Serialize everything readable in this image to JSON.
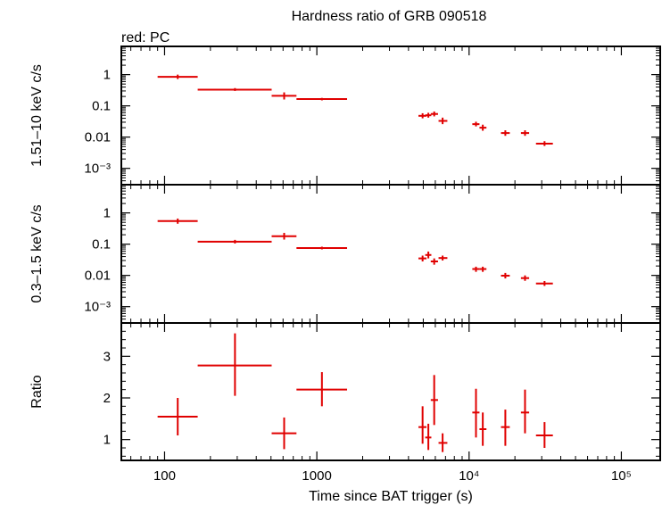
{
  "title": "Hardness ratio of GRB 090518",
  "legend_text": "red: PC",
  "colors": {
    "series": "#e00000",
    "frame": "#000000",
    "background": "#ffffff"
  },
  "chart_data": [
    {
      "type": "scatter",
      "panel": "top",
      "ylabel": "1.51–10 keV c/s",
      "yscale": "log",
      "ylim": [
        0.0003,
        8
      ],
      "yticks": [
        {
          "v": 1,
          "label": "1"
        },
        {
          "v": 0.1,
          "label": "0.1"
        },
        {
          "v": 0.01,
          "label": "0.01"
        },
        {
          "v": 0.001,
          "label": "10⁻³"
        }
      ],
      "series": [
        {
          "name": "PC",
          "points": [
            {
              "x": 122,
              "xlo": 90,
              "xhi": 165,
              "y": 0.85,
              "ylo": 0.72,
              "yhi": 1.0
            },
            {
              "x": 290,
              "xlo": 165,
              "xhi": 505,
              "y": 0.33,
              "ylo": 0.3,
              "yhi": 0.37
            },
            {
              "x": 610,
              "xlo": 505,
              "xhi": 735,
              "y": 0.21,
              "ylo": 0.16,
              "yhi": 0.27
            },
            {
              "x": 1080,
              "xlo": 735,
              "xhi": 1580,
              "y": 0.165,
              "ylo": 0.15,
              "yhi": 0.18
            },
            {
              "x": 4950,
              "xlo": 4650,
              "xhi": 5250,
              "y": 0.048,
              "ylo": 0.04,
              "yhi": 0.058
            },
            {
              "x": 5400,
              "xlo": 5150,
              "xhi": 5650,
              "y": 0.05,
              "ylo": 0.042,
              "yhi": 0.06
            },
            {
              "x": 5900,
              "xlo": 5600,
              "xhi": 6250,
              "y": 0.055,
              "ylo": 0.046,
              "yhi": 0.066
            },
            {
              "x": 6700,
              "xlo": 6300,
              "xhi": 7200,
              "y": 0.033,
              "ylo": 0.026,
              "yhi": 0.042
            },
            {
              "x": 11100,
              "xlo": 10500,
              "xhi": 11700,
              "y": 0.026,
              "ylo": 0.022,
              "yhi": 0.031
            },
            {
              "x": 12300,
              "xlo": 11700,
              "xhi": 13000,
              "y": 0.02,
              "ylo": 0.016,
              "yhi": 0.025
            },
            {
              "x": 17300,
              "xlo": 16200,
              "xhi": 18500,
              "y": 0.0135,
              "ylo": 0.011,
              "yhi": 0.0165
            },
            {
              "x": 23300,
              "xlo": 21900,
              "xhi": 24800,
              "y": 0.0135,
              "ylo": 0.011,
              "yhi": 0.0165
            },
            {
              "x": 31300,
              "xlo": 27500,
              "xhi": 35500,
              "y": 0.0062,
              "ylo": 0.0052,
              "yhi": 0.0074
            }
          ]
        }
      ]
    },
    {
      "type": "scatter",
      "panel": "middle",
      "ylabel": "0.3–1.5 keV c/s",
      "yscale": "log",
      "ylim": [
        0.0003,
        8
      ],
      "yticks": [
        {
          "v": 1,
          "label": "1"
        },
        {
          "v": 0.1,
          "label": "0.1"
        },
        {
          "v": 0.01,
          "label": "0.01"
        },
        {
          "v": 0.001,
          "label": "10⁻³"
        }
      ],
      "series": [
        {
          "name": "PC",
          "points": [
            {
              "x": 122,
              "xlo": 90,
              "xhi": 165,
              "y": 0.55,
              "ylo": 0.45,
              "yhi": 0.66
            },
            {
              "x": 290,
              "xlo": 165,
              "xhi": 505,
              "y": 0.12,
              "ylo": 0.105,
              "yhi": 0.137
            },
            {
              "x": 610,
              "xlo": 505,
              "xhi": 735,
              "y": 0.18,
              "ylo": 0.14,
              "yhi": 0.23
            },
            {
              "x": 1080,
              "xlo": 735,
              "xhi": 1580,
              "y": 0.075,
              "ylo": 0.068,
              "yhi": 0.083
            },
            {
              "x": 4950,
              "xlo": 4650,
              "xhi": 5250,
              "y": 0.035,
              "ylo": 0.028,
              "yhi": 0.043
            },
            {
              "x": 5400,
              "xlo": 5150,
              "xhi": 5650,
              "y": 0.045,
              "ylo": 0.035,
              "yhi": 0.058
            },
            {
              "x": 5900,
              "xlo": 5600,
              "xhi": 6250,
              "y": 0.028,
              "ylo": 0.022,
              "yhi": 0.035
            },
            {
              "x": 6700,
              "xlo": 6300,
              "xhi": 7200,
              "y": 0.036,
              "ylo": 0.03,
              "yhi": 0.043
            },
            {
              "x": 11100,
              "xlo": 10500,
              "xhi": 11700,
              "y": 0.016,
              "ylo": 0.013,
              "yhi": 0.019
            },
            {
              "x": 12300,
              "xlo": 11700,
              "xhi": 13000,
              "y": 0.016,
              "ylo": 0.013,
              "yhi": 0.019
            },
            {
              "x": 17300,
              "xlo": 16200,
              "xhi": 18500,
              "y": 0.0098,
              "ylo": 0.008,
              "yhi": 0.012
            },
            {
              "x": 23300,
              "xlo": 21900,
              "xhi": 24800,
              "y": 0.0082,
              "ylo": 0.0067,
              "yhi": 0.01
            },
            {
              "x": 31300,
              "xlo": 27500,
              "xhi": 35500,
              "y": 0.0055,
              "ylo": 0.0046,
              "yhi": 0.0066
            }
          ]
        }
      ]
    },
    {
      "type": "scatter",
      "panel": "bottom",
      "ylabel": "Ratio",
      "xlabel": "Time since BAT trigger (s)",
      "xscale": "log",
      "xlim": [
        52,
        180000
      ],
      "xticks": [
        {
          "v": 100,
          "label": "100"
        },
        {
          "v": 1000,
          "label": "1000"
        },
        {
          "v": 10000,
          "label": "10⁴"
        },
        {
          "v": 100000,
          "label": "10⁵"
        }
      ],
      "yscale": "linear",
      "ylim": [
        0.5,
        3.8
      ],
      "yticks": [
        {
          "v": 1,
          "label": "1"
        },
        {
          "v": 2,
          "label": "2"
        },
        {
          "v": 3,
          "label": "3"
        }
      ],
      "series": [
        {
          "name": "PC",
          "points": [
            {
              "x": 122,
              "xlo": 90,
              "xhi": 165,
              "y": 1.55,
              "ylo": 1.1,
              "yhi": 2.0
            },
            {
              "x": 290,
              "xlo": 165,
              "xhi": 505,
              "y": 2.78,
              "ylo": 2.05,
              "yhi": 3.55
            },
            {
              "x": 610,
              "xlo": 505,
              "xhi": 735,
              "y": 1.15,
              "ylo": 0.77,
              "yhi": 1.53
            },
            {
              "x": 1080,
              "xlo": 735,
              "xhi": 1580,
              "y": 2.2,
              "ylo": 1.8,
              "yhi": 2.62
            },
            {
              "x": 4950,
              "xlo": 4650,
              "xhi": 5250,
              "y": 1.3,
              "ylo": 0.9,
              "yhi": 1.8
            },
            {
              "x": 5400,
              "xlo": 5150,
              "xhi": 5650,
              "y": 1.05,
              "ylo": 0.75,
              "yhi": 1.38
            },
            {
              "x": 5900,
              "xlo": 5600,
              "xhi": 6250,
              "y": 1.95,
              "ylo": 1.35,
              "yhi": 2.55
            },
            {
              "x": 6700,
              "xlo": 6300,
              "xhi": 7200,
              "y": 0.92,
              "ylo": 0.7,
              "yhi": 1.15
            },
            {
              "x": 11100,
              "xlo": 10500,
              "xhi": 11700,
              "y": 1.65,
              "ylo": 1.05,
              "yhi": 2.22
            },
            {
              "x": 12300,
              "xlo": 11700,
              "xhi": 13000,
              "y": 1.25,
              "ylo": 0.85,
              "yhi": 1.65
            },
            {
              "x": 17300,
              "xlo": 16200,
              "xhi": 18500,
              "y": 1.3,
              "ylo": 0.85,
              "yhi": 1.72
            },
            {
              "x": 23300,
              "xlo": 21900,
              "xhi": 24800,
              "y": 1.65,
              "ylo": 1.15,
              "yhi": 2.2
            },
            {
              "x": 31300,
              "xlo": 27500,
              "xhi": 35500,
              "y": 1.1,
              "ylo": 0.8,
              "yhi": 1.42
            }
          ]
        }
      ]
    }
  ]
}
